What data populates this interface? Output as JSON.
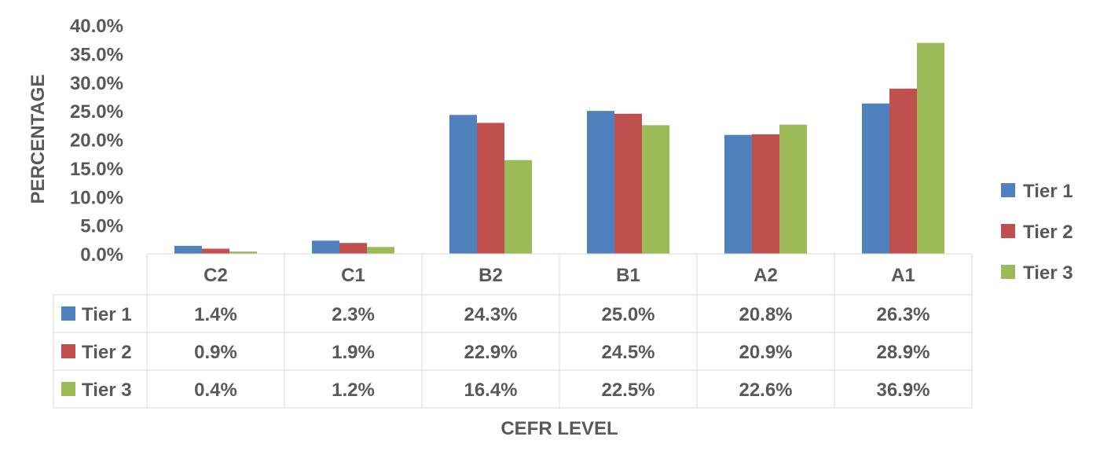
{
  "chart_data": {
    "type": "bar",
    "title": "",
    "xlabel": "CEFR LEVEL",
    "ylabel": "PERCENTAGE",
    "categories": [
      "C2",
      "C1",
      "B2",
      "B1",
      "A2",
      "A1"
    ],
    "ylim": [
      0,
      40
    ],
    "yticks": [
      "0.0%",
      "5.0%",
      "10.0%",
      "15.0%",
      "20.0%",
      "25.0%",
      "30.0%",
      "35.0%",
      "40.0%"
    ],
    "grid": false,
    "legend_position": "right",
    "series": [
      {
        "name": "Tier 1",
        "color": "#4F81BD",
        "values": [
          1.4,
          2.3,
          24.3,
          25.0,
          20.8,
          26.3
        ],
        "labels": [
          "1.4%",
          "2.3%",
          "24.3%",
          "25.0%",
          "20.8%",
          "26.3%"
        ]
      },
      {
        "name": "Tier 2",
        "color": "#C0504D",
        "values": [
          0.9,
          1.9,
          22.9,
          24.5,
          20.9,
          28.9
        ],
        "labels": [
          "0.9%",
          "1.9%",
          "22.9%",
          "24.5%",
          "20.9%",
          "28.9%"
        ]
      },
      {
        "name": "Tier 3",
        "color": "#9BBB59",
        "values": [
          0.4,
          1.2,
          16.4,
          22.5,
          22.6,
          36.9
        ],
        "labels": [
          "0.4%",
          "1.2%",
          "16.4%",
          "22.5%",
          "22.6%",
          "36.9%"
        ]
      }
    ]
  }
}
